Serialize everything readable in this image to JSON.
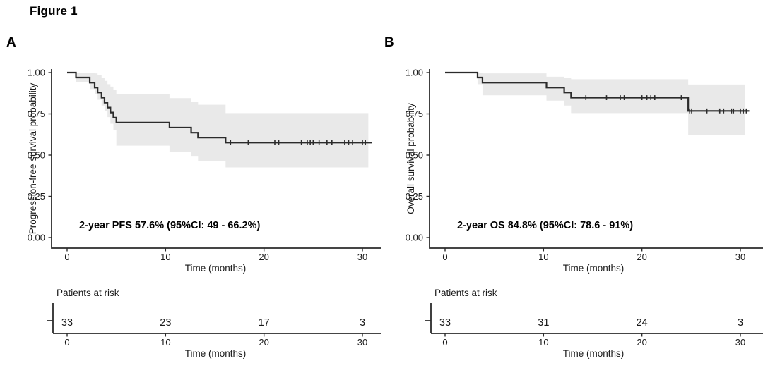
{
  "figure_title": "Figure 1",
  "chart_data": [
    {
      "type": "line",
      "variant": "kaplan_meier_step",
      "panel_label": "A",
      "title": "",
      "xlabel": "Time (months)",
      "ylabel": "Progression-free survival probability",
      "annotation": "2-year PFS 57.6% (95%CI: 49 - 66.2%)",
      "xlim": [
        0,
        31
      ],
      "xticks": [
        0,
        10,
        20,
        30
      ],
      "ylim": [
        0,
        1
      ],
      "yticks": [
        0,
        0.25,
        0.5,
        0.75,
        1
      ],
      "grid": false,
      "legend": "none",
      "line_color": "#2b2b2b",
      "ci_color": "#e9e9e9",
      "steps": [
        [
          0,
          1
        ],
        [
          0.9,
          0.97
        ],
        [
          2.3,
          0.939
        ],
        [
          2.8,
          0.909
        ],
        [
          3.1,
          0.879
        ],
        [
          3.5,
          0.848
        ],
        [
          3.8,
          0.818
        ],
        [
          4.1,
          0.788
        ],
        [
          4.4,
          0.758
        ],
        [
          4.7,
          0.727
        ],
        [
          5,
          0.697
        ],
        [
          10.4,
          0.667
        ],
        [
          12.6,
          0.636
        ],
        [
          13.3,
          0.606
        ],
        [
          16.1,
          0.576
        ],
        [
          31,
          0.576
        ]
      ],
      "censors": [
        [
          16.6,
          0.576
        ],
        [
          18.4,
          0.576
        ],
        [
          21.1,
          0.576
        ],
        [
          21.5,
          0.576
        ],
        [
          23.8,
          0.576
        ],
        [
          24.4,
          0.576
        ],
        [
          24.7,
          0.576
        ],
        [
          25.0,
          0.576
        ],
        [
          25.6,
          0.576
        ],
        [
          26.4,
          0.576
        ],
        [
          26.9,
          0.576
        ],
        [
          28.2,
          0.576
        ],
        [
          28.6,
          0.576
        ],
        [
          29.0,
          0.576
        ],
        [
          30.0,
          0.576
        ],
        [
          30.3,
          0.576
        ]
      ],
      "ci_band": [
        [
          0.9,
          1,
          0.94
        ],
        [
          2.3,
          1,
          0.9
        ],
        [
          2.8,
          0.995,
          0.87
        ],
        [
          3.1,
          0.985,
          0.835
        ],
        [
          3.5,
          0.97,
          0.8
        ],
        [
          3.8,
          0.95,
          0.765
        ],
        [
          4.1,
          0.93,
          0.73
        ],
        [
          4.4,
          0.915,
          0.69
        ],
        [
          4.7,
          0.895,
          0.65
        ],
        [
          5,
          0.87,
          0.557
        ],
        [
          10.4,
          0.845,
          0.52
        ],
        [
          12.6,
          0.825,
          0.495
        ],
        [
          13.3,
          0.805,
          0.465
        ],
        [
          16.1,
          0.755,
          0.425
        ],
        [
          30.6,
          0.755,
          0.425
        ]
      ],
      "risk_table": {
        "title": "Patients at risk",
        "times": [
          0,
          10,
          20,
          30
        ],
        "counts": [
          33,
          23,
          17,
          3
        ],
        "xlabel": "Time (months)"
      }
    },
    {
      "type": "line",
      "variant": "kaplan_meier_step",
      "panel_label": "B",
      "title": "",
      "xlabel": "Time (months)",
      "ylabel": "Overall survival probability",
      "annotation": "2-year OS 84.8% (95%CI: 78.6 - 91%)",
      "xlim": [
        0,
        31
      ],
      "xticks": [
        0,
        10,
        20,
        30
      ],
      "ylim": [
        0,
        1
      ],
      "yticks": [
        0,
        0.25,
        0.5,
        0.75,
        1
      ],
      "grid": false,
      "legend": "none",
      "line_color": "#2b2b2b",
      "ci_color": "#e9e9e9",
      "steps": [
        [
          0,
          1
        ],
        [
          3.3,
          0.97
        ],
        [
          3.8,
          0.939
        ],
        [
          10.3,
          0.909
        ],
        [
          12.1,
          0.879
        ],
        [
          12.8,
          0.848
        ],
        [
          24.7,
          0.768
        ],
        [
          30.9,
          0.768
        ]
      ],
      "censors": [
        [
          14.3,
          0.848
        ],
        [
          16.4,
          0.848
        ],
        [
          17.8,
          0.848
        ],
        [
          18.2,
          0.848
        ],
        [
          20.0,
          0.848
        ],
        [
          20.5,
          0.848
        ],
        [
          20.9,
          0.848
        ],
        [
          21.3,
          0.848
        ],
        [
          24.0,
          0.848
        ],
        [
          24.85,
          0.768
        ],
        [
          25.05,
          0.768
        ],
        [
          26.6,
          0.768
        ],
        [
          27.9,
          0.768
        ],
        [
          28.3,
          0.768
        ],
        [
          29.1,
          0.768
        ],
        [
          29.3,
          0.768
        ],
        [
          30.0,
          0.768
        ],
        [
          30.3,
          0.768
        ],
        [
          30.6,
          0.768
        ]
      ],
      "ci_band": [
        [
          3.3,
          1,
          0.93
        ],
        [
          3.8,
          0.995,
          0.862
        ],
        [
          10.3,
          0.975,
          0.83
        ],
        [
          12.1,
          0.968,
          0.8
        ],
        [
          12.8,
          0.96,
          0.755
        ],
        [
          24.7,
          0.928,
          0.622
        ],
        [
          30.5,
          0.928,
          0.622
        ]
      ],
      "risk_table": {
        "title": "Patients at risk",
        "times": [
          0,
          10,
          20,
          30
        ],
        "counts": [
          33,
          31,
          24,
          3
        ],
        "xlabel": "Time (months)"
      }
    }
  ]
}
